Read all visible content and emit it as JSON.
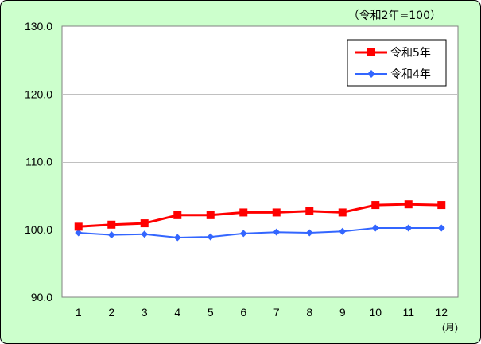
{
  "colors": {
    "background": "#ccffcc",
    "plot_area": "#ffffff",
    "gridline": "#c0c0c0",
    "series_2023": "#ff0000",
    "series_2022": "#3366ff"
  },
  "chart_data": {
    "type": "line",
    "title": "",
    "unit_note": "（令和2年=100）",
    "x": [
      1,
      2,
      3,
      4,
      5,
      6,
      7,
      8,
      9,
      10,
      11,
      12
    ],
    "x_tick_labels": [
      "1",
      "2",
      "3",
      "4",
      "5",
      "6",
      "7",
      "8",
      "9",
      "10",
      "11",
      "12"
    ],
    "x_unit": "(月)",
    "ylim": [
      90,
      130
    ],
    "y_ticks": [
      90,
      100,
      110,
      120,
      130
    ],
    "y_tick_labels": [
      "90.0",
      "100.0",
      "110.0",
      "120.0",
      "130.0"
    ],
    "gridlines": "horizontal",
    "legend_position": "top-right",
    "series": [
      {
        "name": "令和5年",
        "marker": "square",
        "color": "#ff0000",
        "values": [
          100.4,
          100.7,
          100.9,
          102.1,
          102.1,
          102.5,
          102.5,
          102.7,
          102.5,
          103.6,
          103.7,
          103.6
        ]
      },
      {
        "name": "令和4年",
        "marker": "diamond",
        "color": "#3366ff",
        "values": [
          99.5,
          99.2,
          99.3,
          98.8,
          98.9,
          99.4,
          99.6,
          99.5,
          99.7,
          100.2,
          100.2,
          100.2
        ]
      }
    ]
  }
}
